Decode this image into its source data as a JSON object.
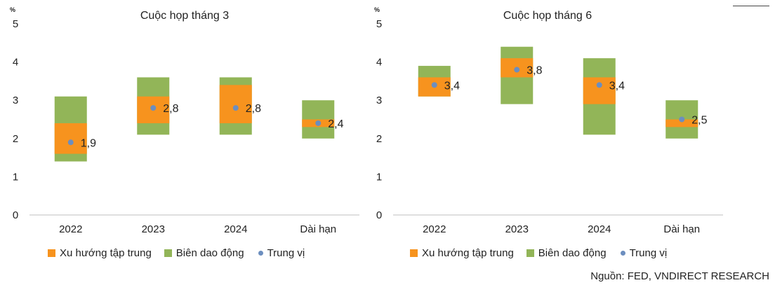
{
  "colors": {
    "central": "#F7931E",
    "range": "#92B558",
    "median": "#6C8EBF",
    "axis": "#BFBFBF"
  },
  "legend": {
    "central": "Xu hướng tập trung",
    "range": "Biên dao động",
    "median": "Trung vị"
  },
  "source": "Nguồn: FED, VNDIRECT RESEARCH",
  "chart_data": [
    {
      "type": "bar",
      "subtype": "floating-range",
      "title": "Cuộc họp tháng 3",
      "unit": "%",
      "ylim": [
        0,
        5
      ],
      "yticks": [
        "0",
        "1",
        "2",
        "3",
        "4",
        "5"
      ],
      "categories": [
        "2022",
        "2023",
        "2024",
        "Dài hạn"
      ],
      "series": [
        {
          "name": "Xu hướng tập trung",
          "values": [
            [
              1.6,
              2.4
            ],
            [
              2.4,
              3.1
            ],
            [
              2.4,
              3.4
            ],
            [
              2.3,
              2.5
            ]
          ]
        },
        {
          "name": "Biên dao động",
          "values": [
            [
              1.4,
              3.1
            ],
            [
              2.1,
              3.6
            ],
            [
              2.1,
              3.6
            ],
            [
              2.0,
              3.0
            ]
          ]
        },
        {
          "name": "Trung vị",
          "values": [
            1.9,
            2.8,
            2.8,
            2.4
          ]
        }
      ],
      "median_labels": [
        "1,9",
        "2,8",
        "2,8",
        "2,4"
      ],
      "legend_position": "bottom"
    },
    {
      "type": "bar",
      "subtype": "floating-range",
      "title": "Cuộc họp tháng 6",
      "unit": "%",
      "ylim": [
        0,
        5
      ],
      "yticks": [
        "0",
        "1",
        "2",
        "3",
        "4",
        "5"
      ],
      "categories": [
        "2022",
        "2023",
        "2024",
        "Dài hạn"
      ],
      "series": [
        {
          "name": "Xu hướng tập trung",
          "values": [
            [
              3.1,
              3.6
            ],
            [
              3.6,
              4.1
            ],
            [
              2.9,
              3.6
            ],
            [
              2.3,
              2.5
            ]
          ]
        },
        {
          "name": "Biên dao động",
          "values": [
            [
              3.1,
              3.9
            ],
            [
              2.9,
              4.4
            ],
            [
              2.1,
              4.1
            ],
            [
              2.0,
              3.0
            ]
          ]
        },
        {
          "name": "Trung vị",
          "values": [
            3.4,
            3.8,
            3.4,
            2.5
          ]
        }
      ],
      "median_labels": [
        "3,4",
        "3,8",
        "3,4",
        "2,5"
      ],
      "legend_position": "bottom"
    }
  ]
}
